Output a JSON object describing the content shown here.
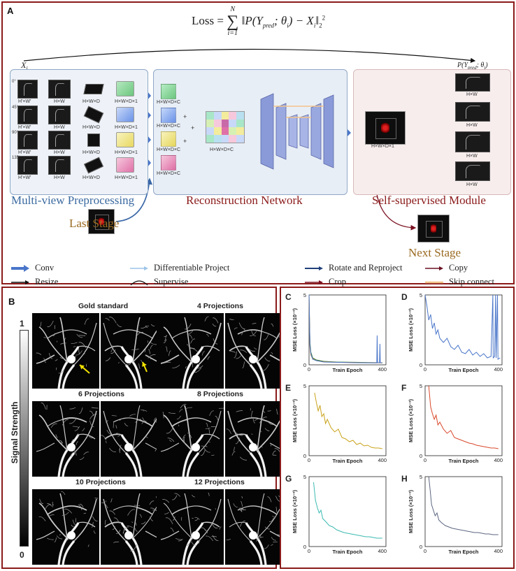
{
  "panel_a": {
    "letter": "A",
    "loss": {
      "prefix": "Loss =",
      "sum_top": "N",
      "sum_bottom": "i=1",
      "body": "‖P(Y",
      "pred": "pred",
      "mid": "; θ",
      "i1": "i",
      "tail": ") − X",
      "i2": "i",
      "close": "‖",
      "sq": "2",
      "norm": "2"
    },
    "x_label": "X",
    "x_sub": "i",
    "pred_label": "P(Y",
    "pred_sub": "pred",
    "pred_tail": "; θ",
    "pred_i": "i",
    "pred_close": ")",
    "angles": [
      "0°",
      "45°",
      "90°",
      "135°"
    ],
    "label_hw_prime": "H'×W'",
    "label_hw": "H×W",
    "label_hwd": "H×W×D",
    "label_hwd1": "H×W×D×1",
    "label_hwdc": "H×W×D×C",
    "plus": "+",
    "stages": {
      "mvp": "Multi-view Preprocessing",
      "rn": "Reconstruction Network",
      "ssm": "Self-supervised Module",
      "last": "Last Stage",
      "next": "Next Stage"
    },
    "legend": [
      {
        "label": "Conv",
        "color": "#4a76c9",
        "style": "block"
      },
      {
        "label": "Resize",
        "color": "#111111",
        "style": "thin"
      },
      {
        "label": "Differentiable Project",
        "color": "#9cc4e8",
        "style": "thin"
      },
      {
        "label": "Supervise",
        "color": "#111111",
        "style": "arc"
      },
      {
        "label": "Rotate and Reproject",
        "color": "#1f3f7a",
        "style": "thin"
      },
      {
        "label": "Crop",
        "color": "#7a1020",
        "style": "thin"
      },
      {
        "label": "Copy",
        "color": "#6a1020",
        "style": "thin"
      },
      {
        "label": "Skip connect",
        "color": "#f2c48a",
        "style": "line"
      }
    ]
  },
  "panel_b": {
    "letter": "B",
    "colorbar": {
      "top": "1",
      "bottom": "0",
      "title": "Signal Strength"
    },
    "groups": [
      {
        "title": "Gold standard"
      },
      {
        "title": "4 Projections"
      },
      {
        "title": "6 Projections"
      },
      {
        "title": "8 Projections"
      },
      {
        "title": "10 Projections"
      },
      {
        "title": "12 Projections"
      }
    ],
    "arrow_color": "#f2e200"
  },
  "chart_data": [
    {
      "id": "C",
      "type": "line",
      "xlabel": "Train Epoch",
      "ylabel": "MSE Loss (×10⁻³)",
      "xlim": [
        0,
        420
      ],
      "ylim": [
        0,
        5
      ],
      "xticks": [
        0,
        400
      ],
      "yticks": [
        0,
        5
      ],
      "series": [
        {
          "color": "#2e7d32",
          "values": [
            [
              0,
              5
            ],
            [
              5,
              1.6
            ],
            [
              10,
              0.9
            ],
            [
              20,
              0.5
            ],
            [
              40,
              0.35
            ],
            [
              80,
              0.25
            ],
            [
              150,
              0.2
            ],
            [
              250,
              0.18
            ],
            [
              390,
              0.15
            ],
            [
              400,
              0.15
            ]
          ]
        },
        {
          "color": "#e07a2a",
          "values": [
            [
              0,
              5
            ],
            [
              5,
              1.3
            ],
            [
              10,
              0.7
            ],
            [
              20,
              0.45
            ],
            [
              40,
              0.3
            ],
            [
              80,
              0.22
            ],
            [
              150,
              0.18
            ],
            [
              250,
              0.16
            ],
            [
              400,
              0.14
            ]
          ]
        },
        {
          "color": "#4a76c9",
          "values": [
            [
              0,
              5
            ],
            [
              5,
              1.4
            ],
            [
              10,
              0.8
            ],
            [
              20,
              0.4
            ],
            [
              40,
              0.3
            ],
            [
              80,
              0.2
            ],
            [
              150,
              0.18
            ],
            [
              250,
              0.15
            ],
            [
              370,
              0.14
            ],
            [
              372,
              2.1
            ],
            [
              374,
              0.15
            ],
            [
              385,
              0.15
            ],
            [
              387,
              1.5
            ],
            [
              389,
              0.15
            ],
            [
              400,
              0.14
            ]
          ]
        }
      ]
    },
    {
      "id": "D",
      "type": "line",
      "xlabel": "Train Epoch",
      "ylabel": "MSE Loss (×10⁻³)",
      "xlim": [
        0,
        420
      ],
      "ylim": [
        0,
        5
      ],
      "xticks": [
        0,
        400
      ],
      "yticks": [
        0,
        5
      ],
      "series": [
        {
          "color": "#4a76c9",
          "values": [
            [
              0,
              5
            ],
            [
              10,
              4.2
            ],
            [
              20,
              3.2
            ],
            [
              30,
              3.6
            ],
            [
              40,
              2.6
            ],
            [
              50,
              3.0
            ],
            [
              60,
              2.2
            ],
            [
              70,
              2.5
            ],
            [
              80,
              1.9
            ],
            [
              100,
              1.6
            ],
            [
              120,
              1.9
            ],
            [
              140,
              1.3
            ],
            [
              160,
              1.1
            ],
            [
              180,
              1.4
            ],
            [
              200,
              0.9
            ],
            [
              220,
              0.8
            ],
            [
              240,
              1.1
            ],
            [
              260,
              0.7
            ],
            [
              280,
              0.9
            ],
            [
              300,
              0.6
            ],
            [
              320,
              0.8
            ],
            [
              340,
              0.5
            ],
            [
              360,
              0.6
            ],
            [
              370,
              5
            ],
            [
              372,
              0.5
            ],
            [
              380,
              0.6
            ],
            [
              385,
              5
            ],
            [
              388,
              0.5
            ],
            [
              395,
              5
            ],
            [
              398,
              0.4
            ],
            [
              410,
              0.5
            ]
          ]
        }
      ]
    },
    {
      "id": "E",
      "type": "line",
      "xlabel": "Train Epoch",
      "ylabel": "MSE Loss (×10⁻³)",
      "xlim": [
        0,
        420
      ],
      "ylim": [
        0,
        5
      ],
      "xticks": [
        0,
        400
      ],
      "yticks": [
        0,
        5
      ],
      "series": [
        {
          "color": "#c9a21a",
          "values": [
            [
              30,
              4.5
            ],
            [
              40,
              3.8
            ],
            [
              50,
              3.2
            ],
            [
              60,
              3.6
            ],
            [
              70,
              2.8
            ],
            [
              80,
              3.0
            ],
            [
              90,
              2.3
            ],
            [
              100,
              2.6
            ],
            [
              120,
              2.0
            ],
            [
              140,
              1.7
            ],
            [
              160,
              1.9
            ],
            [
              180,
              1.3
            ],
            [
              200,
              1.2
            ],
            [
              220,
              1.0
            ],
            [
              240,
              1.1
            ],
            [
              260,
              0.8
            ],
            [
              280,
              0.9
            ],
            [
              300,
              0.7
            ],
            [
              320,
              0.75
            ],
            [
              340,
              0.6
            ],
            [
              360,
              0.55
            ],
            [
              380,
              0.55
            ],
            [
              400,
              0.5
            ]
          ]
        }
      ]
    },
    {
      "id": "F",
      "type": "line",
      "xlabel": "Train Epoch",
      "ylabel": "MSE Loss (×10⁻³)",
      "xlim": [
        0,
        420
      ],
      "ylim": [
        0,
        5
      ],
      "xticks": [
        0,
        400
      ],
      "yticks": [
        0,
        5
      ],
      "series": [
        {
          "color": "#d9482b",
          "values": [
            [
              20,
              5
            ],
            [
              30,
              3.5
            ],
            [
              40,
              3.0
            ],
            [
              50,
              2.6
            ],
            [
              60,
              2.9
            ],
            [
              70,
              2.2
            ],
            [
              80,
              2.4
            ],
            [
              100,
              1.9
            ],
            [
              120,
              1.6
            ],
            [
              140,
              1.8
            ],
            [
              160,
              1.3
            ],
            [
              180,
              1.2
            ],
            [
              200,
              1.1
            ],
            [
              220,
              1.0
            ],
            [
              240,
              0.9
            ],
            [
              260,
              0.85
            ],
            [
              280,
              0.75
            ],
            [
              300,
              0.7
            ],
            [
              320,
              0.65
            ],
            [
              340,
              0.6
            ],
            [
              360,
              0.55
            ],
            [
              380,
              0.55
            ],
            [
              400,
              0.5
            ]
          ]
        }
      ]
    },
    {
      "id": "G",
      "type": "line",
      "xlabel": "Train Epoch",
      "ylabel": "MSE Loss (×10⁻³)",
      "xlim": [
        0,
        420
      ],
      "ylim": [
        0,
        5
      ],
      "xticks": [
        0,
        400
      ],
      "yticks": [
        0,
        5
      ],
      "series": [
        {
          "color": "#3bbab0",
          "values": [
            [
              25,
              4.6
            ],
            [
              35,
              3.3
            ],
            [
              45,
              2.8
            ],
            [
              55,
              2.4
            ],
            [
              65,
              2.6
            ],
            [
              75,
              2.0
            ],
            [
              90,
              1.8
            ],
            [
              110,
              1.5
            ],
            [
              130,
              1.4
            ],
            [
              150,
              1.2
            ],
            [
              170,
              1.1
            ],
            [
              190,
              1.0
            ],
            [
              210,
              0.95
            ],
            [
              230,
              0.9
            ],
            [
              250,
              0.85
            ],
            [
              270,
              0.8
            ],
            [
              290,
              0.75
            ],
            [
              310,
              0.7
            ],
            [
              330,
              0.7
            ],
            [
              350,
              0.65
            ],
            [
              370,
              0.6
            ],
            [
              400,
              0.6
            ]
          ]
        }
      ]
    },
    {
      "id": "H",
      "type": "line",
      "xlabel": "Train Epoch",
      "ylabel": "MSE Loss (×10⁻³)",
      "xlim": [
        0,
        420
      ],
      "ylim": [
        0,
        5
      ],
      "xticks": [
        0,
        400
      ],
      "yticks": [
        0,
        5
      ],
      "series": [
        {
          "color": "#5c6680",
          "values": [
            [
              20,
              5
            ],
            [
              28,
              4.0
            ],
            [
              35,
              3.0
            ],
            [
              45,
              2.6
            ],
            [
              55,
              2.2
            ],
            [
              65,
              2.4
            ],
            [
              75,
              1.9
            ],
            [
              90,
              1.7
            ],
            [
              110,
              1.5
            ],
            [
              130,
              1.4
            ],
            [
              150,
              1.3
            ],
            [
              170,
              1.25
            ],
            [
              190,
              1.2
            ],
            [
              210,
              1.15
            ],
            [
              230,
              1.1
            ],
            [
              250,
              1.05
            ],
            [
              270,
              1.0
            ],
            [
              290,
              1.0
            ],
            [
              310,
              0.95
            ],
            [
              330,
              0.9
            ],
            [
              350,
              0.9
            ],
            [
              370,
              0.85
            ],
            [
              400,
              0.85
            ]
          ]
        }
      ]
    }
  ]
}
